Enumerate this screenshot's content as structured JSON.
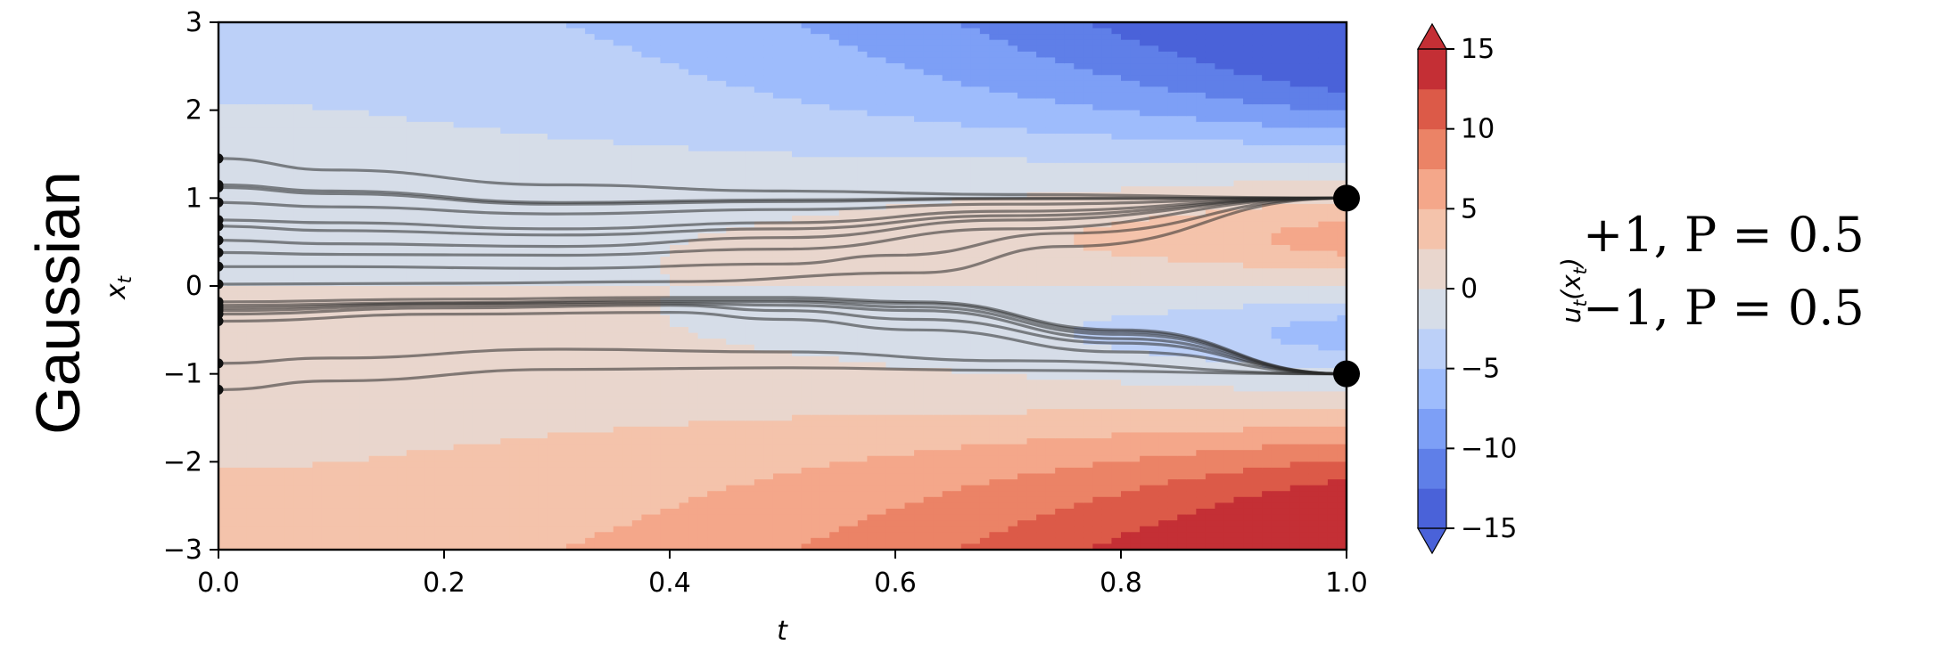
{
  "row_label": "Gaussian",
  "distribution": {
    "line1": "+1, P = 0.5",
    "line2": "−1, P = 0.5"
  },
  "chart_data": {
    "type": "contour",
    "xlabel": "t",
    "ylabel": "x_t",
    "xlim": [
      0.0,
      1.0
    ],
    "ylim": [
      -3,
      3
    ],
    "xticks": [
      "0.0",
      "0.2",
      "0.4",
      "0.6",
      "0.8",
      "1.0"
    ],
    "xtick_values": [
      0.0,
      0.2,
      0.4,
      0.6,
      0.8,
      1.0
    ],
    "yticks": [
      "3",
      "2",
      "1",
      "0",
      "−1",
      "−2",
      "−3"
    ],
    "ytick_values": [
      3,
      2,
      1,
      0,
      -1,
      -2,
      -3
    ],
    "colorbar": {
      "label": "u_t(x_t)",
      "colormap": "coolwarm",
      "range": [
        -15,
        15
      ],
      "ticks": [
        "15",
        "10",
        "5",
        "0",
        "−5",
        "−10",
        "−15"
      ],
      "tick_values": [
        15,
        10,
        5,
        0,
        -5,
        -10,
        -15
      ],
      "levels": [
        -15,
        -12.5,
        -10,
        -7.5,
        -5,
        -2.5,
        0,
        2.5,
        5,
        7.5,
        10,
        12.5,
        15
      ],
      "level_colors": [
        "#4a62d9",
        "#5f7fe8",
        "#7d9ff6",
        "#9ebcfc",
        "#bcd0f8",
        "#d6dde8",
        "#e9d6cd",
        "#f4c3ab",
        "#f4a78a",
        "#eb8366",
        "#dc5a48",
        "#c42f35"
      ]
    },
    "target_points": [
      {
        "t": 1.0,
        "x": 1.0
      },
      {
        "t": 1.0,
        "x": -1.0
      }
    ],
    "trajectories": [
      {
        "start": 1.45,
        "end": 1.0,
        "points": [
          [
            0,
            1.45
          ],
          [
            0.1,
            1.32
          ],
          [
            0.3,
            1.15
          ],
          [
            0.5,
            1.08
          ],
          [
            0.7,
            1.04
          ],
          [
            1.0,
            1.0
          ]
        ]
      },
      {
        "start": 1.15,
        "end": 1.0,
        "points": [
          [
            0,
            1.15
          ],
          [
            0.1,
            1.08
          ],
          [
            0.3,
            0.95
          ],
          [
            0.5,
            0.98
          ],
          [
            0.7,
            1.0
          ],
          [
            1.0,
            1.0
          ]
        ]
      },
      {
        "start": 1.12,
        "end": 1.0,
        "points": [
          [
            0,
            1.12
          ],
          [
            0.1,
            1.05
          ],
          [
            0.3,
            0.93
          ],
          [
            0.5,
            0.96
          ],
          [
            0.7,
            0.99
          ],
          [
            1.0,
            1.0
          ]
        ]
      },
      {
        "start": 0.95,
        "end": 1.0,
        "points": [
          [
            0,
            0.95
          ],
          [
            0.1,
            0.9
          ],
          [
            0.3,
            0.82
          ],
          [
            0.5,
            0.87
          ],
          [
            0.7,
            0.93
          ],
          [
            1.0,
            1.0
          ]
        ]
      },
      {
        "start": 0.75,
        "end": 1.0,
        "points": [
          [
            0,
            0.75
          ],
          [
            0.1,
            0.72
          ],
          [
            0.3,
            0.65
          ],
          [
            0.5,
            0.72
          ],
          [
            0.7,
            0.85
          ],
          [
            1.0,
            1.0
          ]
        ]
      },
      {
        "start": 0.68,
        "end": 1.0,
        "points": [
          [
            0,
            0.68
          ],
          [
            0.1,
            0.63
          ],
          [
            0.3,
            0.58
          ],
          [
            0.5,
            0.65
          ],
          [
            0.7,
            0.8
          ],
          [
            1.0,
            1.0
          ]
        ]
      },
      {
        "start": 0.52,
        "end": 1.0,
        "points": [
          [
            0,
            0.52
          ],
          [
            0.1,
            0.48
          ],
          [
            0.3,
            0.45
          ],
          [
            0.5,
            0.55
          ],
          [
            0.7,
            0.75
          ],
          [
            1.0,
            1.0
          ]
        ]
      },
      {
        "start": 0.38,
        "end": 1.0,
        "points": [
          [
            0,
            0.38
          ],
          [
            0.1,
            0.36
          ],
          [
            0.3,
            0.35
          ],
          [
            0.5,
            0.42
          ],
          [
            0.7,
            0.65
          ],
          [
            1.0,
            1.0
          ]
        ]
      },
      {
        "start": 0.22,
        "end": 1.0,
        "points": [
          [
            0,
            0.22
          ],
          [
            0.1,
            0.22
          ],
          [
            0.3,
            0.2
          ],
          [
            0.5,
            0.25
          ],
          [
            0.6,
            0.35
          ],
          [
            0.75,
            0.6
          ],
          [
            1.0,
            1.0
          ]
        ]
      },
      {
        "start": 0.02,
        "end": 1.0,
        "points": [
          [
            0,
            0.02
          ],
          [
            0.2,
            0.03
          ],
          [
            0.4,
            0.05
          ],
          [
            0.62,
            0.15
          ],
          [
            0.75,
            0.45
          ],
          [
            1.0,
            1.0
          ]
        ]
      },
      {
        "start": -0.18,
        "end": -1.0,
        "points": [
          [
            0,
            -0.18
          ],
          [
            0.2,
            -0.15
          ],
          [
            0.4,
            -0.13
          ],
          [
            0.5,
            -0.13
          ],
          [
            0.62,
            -0.18
          ],
          [
            0.8,
            -0.5
          ],
          [
            1.0,
            -1.0
          ]
        ]
      },
      {
        "start": -0.22,
        "end": -1.0,
        "points": [
          [
            0,
            -0.22
          ],
          [
            0.2,
            -0.19
          ],
          [
            0.4,
            -0.16
          ],
          [
            0.5,
            -0.16
          ],
          [
            0.62,
            -0.2
          ],
          [
            0.8,
            -0.52
          ],
          [
            1.0,
            -1.0
          ]
        ]
      },
      {
        "start": -0.25,
        "end": -1.0,
        "points": [
          [
            0,
            -0.25
          ],
          [
            0.2,
            -0.2
          ],
          [
            0.4,
            -0.18
          ],
          [
            0.5,
            -0.18
          ],
          [
            0.62,
            -0.24
          ],
          [
            0.8,
            -0.55
          ],
          [
            1.0,
            -1.0
          ]
        ]
      },
      {
        "start": -0.28,
        "end": -1.0,
        "points": [
          [
            0,
            -0.28
          ],
          [
            0.2,
            -0.22
          ],
          [
            0.4,
            -0.2
          ],
          [
            0.5,
            -0.22
          ],
          [
            0.62,
            -0.28
          ],
          [
            0.8,
            -0.6
          ],
          [
            1.0,
            -1.0
          ]
        ]
      },
      {
        "start": -0.32,
        "end": -1.0,
        "points": [
          [
            0,
            -0.32
          ],
          [
            0.2,
            -0.25
          ],
          [
            0.4,
            -0.22
          ],
          [
            0.5,
            -0.28
          ],
          [
            0.62,
            -0.38
          ],
          [
            0.8,
            -0.65
          ],
          [
            1.0,
            -1.0
          ]
        ]
      },
      {
        "start": -0.4,
        "end": -1.0,
        "points": [
          [
            0,
            -0.4
          ],
          [
            0.2,
            -0.32
          ],
          [
            0.4,
            -0.3
          ],
          [
            0.5,
            -0.38
          ],
          [
            0.62,
            -0.5
          ],
          [
            0.8,
            -0.75
          ],
          [
            1.0,
            -1.0
          ]
        ]
      },
      {
        "start": -0.88,
        "end": -1.0,
        "points": [
          [
            0,
            -0.88
          ],
          [
            0.1,
            -0.82
          ],
          [
            0.3,
            -0.72
          ],
          [
            0.5,
            -0.75
          ],
          [
            0.7,
            -0.85
          ],
          [
            1.0,
            -1.0
          ]
        ]
      },
      {
        "start": -1.18,
        "end": -1.0,
        "points": [
          [
            0,
            -1.18
          ],
          [
            0.1,
            -1.08
          ],
          [
            0.3,
            -0.95
          ],
          [
            0.5,
            -0.93
          ],
          [
            0.7,
            -0.96
          ],
          [
            1.0,
            -1.0
          ]
        ]
      }
    ]
  }
}
